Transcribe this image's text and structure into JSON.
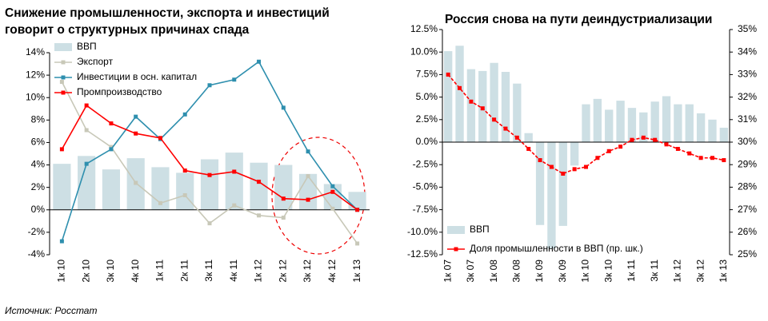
{
  "chart_data": [
    {
      "type": "bar_line",
      "title": "Снижение промышленности, экспорта и инвестиций говорит о структурных причинах спада",
      "categories": [
        "1к 10",
        "2к 10",
        "3к 10",
        "4к 10",
        "1к 11",
        "2к 11",
        "3к 11",
        "4к 11",
        "1к 12",
        "2к 12",
        "3к 12",
        "4к 12",
        "1к 13"
      ],
      "ylim": [
        -4,
        14
      ],
      "yticks": [
        {
          "value": -4,
          "label": "-4%"
        },
        {
          "value": -2,
          "label": "-2%"
        },
        {
          "value": 0,
          "label": "0%"
        },
        {
          "value": 2,
          "label": "2%"
        },
        {
          "value": 4,
          "label": "4%"
        },
        {
          "value": 6,
          "label": "6%"
        },
        {
          "value": 8,
          "label": "8%"
        },
        {
          "value": 10,
          "label": "10%"
        },
        {
          "value": 12,
          "label": "12%"
        },
        {
          "value": 14,
          "label": "14%"
        }
      ],
      "legend": "upper left",
      "series": [
        {
          "name": "ВВП",
          "type": "bar",
          "color": "#cddfe4",
          "values": [
            4.1,
            4.8,
            3.6,
            4.6,
            3.8,
            3.3,
            4.5,
            5.1,
            4.2,
            4.0,
            3.2,
            2.3,
            1.6
          ]
        },
        {
          "name": "Экспорт",
          "type": "line",
          "color": "#c8c8b8",
          "values": [
            11.4,
            7.1,
            5.6,
            2.4,
            0.6,
            1.3,
            -1.2,
            0.4,
            -0.5,
            -0.7,
            3.0,
            0.1,
            -3.0
          ]
        },
        {
          "name": "Инвестиции в осн. капитал",
          "type": "line",
          "color": "#2e8fae",
          "values": [
            -2.8,
            4.1,
            5.4,
            8.3,
            6.3,
            8.5,
            11.1,
            11.6,
            13.2,
            9.1,
            5.2,
            2.1,
            0.0
          ]
        },
        {
          "name": "Промпроизводство",
          "type": "line",
          "color": "#ff0000",
          "values": [
            5.4,
            9.3,
            7.7,
            6.8,
            6.4,
            3.5,
            3.1,
            3.4,
            2.5,
            1.0,
            0.9,
            1.6,
            0.0
          ]
        }
      ]
    },
    {
      "type": "bar_line",
      "title": "Россия снова на пути деиндустриализации",
      "categories": [
        "1к 07",
        null,
        "3к 07",
        null,
        "1к 08",
        null,
        "3к 08",
        null,
        "1к 09",
        null,
        "3к 09",
        null,
        "1к 10",
        null,
        "3к 10",
        null,
        "1к 11",
        null,
        "3к 11",
        null,
        "1к 12",
        null,
        "3к 12",
        null,
        "1к 13"
      ],
      "ylim": [
        -12.5,
        12.5
      ],
      "yticks": [
        {
          "value": -12.5,
          "label": "-12.5%"
        },
        {
          "value": -10,
          "label": "-10.0%"
        },
        {
          "value": -7.5,
          "label": "-7.5%"
        },
        {
          "value": -5,
          "label": "-5.0%"
        },
        {
          "value": -2.5,
          "label": "-2.5%"
        },
        {
          "value": 0,
          "label": "0.0%"
        },
        {
          "value": 2.5,
          "label": "2.5%"
        },
        {
          "value": 5,
          "label": "5.0%"
        },
        {
          "value": 7.5,
          "label": "7.5%"
        },
        {
          "value": 10,
          "label": "10.0%"
        },
        {
          "value": 12.5,
          "label": "12.5%"
        }
      ],
      "y2lim": [
        25,
        35
      ],
      "y2ticks": [
        {
          "value": 25,
          "label": "25%"
        },
        {
          "value": 26,
          "label": "26%"
        },
        {
          "value": 27,
          "label": "27%"
        },
        {
          "value": 28,
          "label": "28%"
        },
        {
          "value": 29,
          "label": "29%"
        },
        {
          "value": 30,
          "label": "30%"
        },
        {
          "value": 31,
          "label": "31%"
        },
        {
          "value": 32,
          "label": "32%"
        },
        {
          "value": 33,
          "label": "33%"
        },
        {
          "value": 34,
          "label": "34%"
        },
        {
          "value": 35,
          "label": "35%"
        }
      ],
      "legend": "lower left",
      "series": [
        {
          "name": "ВВП",
          "type": "bar",
          "color": "#cddfe4",
          "values": [
            10.1,
            10.7,
            8.1,
            7.9,
            8.8,
            7.8,
            6.5,
            1.0,
            -9.2,
            -11.8,
            -9.3,
            -2.6,
            4.2,
            4.8,
            3.6,
            4.6,
            3.8,
            3.3,
            4.5,
            5.1,
            4.2,
            4.2,
            3.2,
            2.5,
            1.6
          ]
        },
        {
          "name": "Доля промышленности в ВВП (пр. шк.)",
          "type": "line",
          "axis": "y2",
          "color": "#ff0000",
          "values": [
            33.0,
            32.4,
            31.8,
            31.5,
            31.0,
            30.6,
            30.2,
            29.7,
            29.2,
            28.9,
            28.6,
            28.8,
            28.9,
            29.3,
            29.6,
            29.8,
            30.1,
            30.2,
            30.1,
            29.9,
            29.7,
            29.5,
            29.3,
            29.3,
            29.2
          ]
        }
      ]
    }
  ],
  "source": "Источник: Росстат"
}
